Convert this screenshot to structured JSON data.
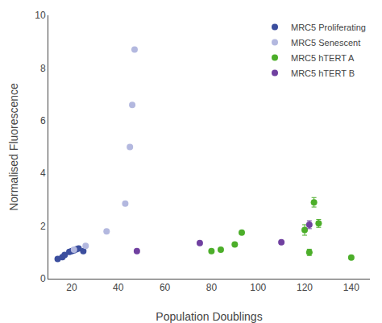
{
  "chart_data": {
    "type": "scatter",
    "xlabel": "Population Doublings",
    "ylabel": "Normalised Fluorescence",
    "xlim": [
      10,
      148
    ],
    "ylim": [
      0,
      10
    ],
    "xticks": [
      20,
      40,
      60,
      80,
      100,
      120,
      140
    ],
    "yticks": [
      0,
      2,
      4,
      6,
      8,
      10
    ],
    "grid": false,
    "legend": "upper right",
    "marker": "circle",
    "series": [
      {
        "name": "MRC5 Proliferating",
        "color": "#3b4e9e",
        "x": [
          14,
          16,
          17,
          19,
          20,
          21,
          22,
          23,
          25
        ],
        "values": [
          0.75,
          0.82,
          0.9,
          1.02,
          1.05,
          1.08,
          1.12,
          1.15,
          1.05
        ],
        "yerr": [
          null,
          null,
          null,
          null,
          null,
          null,
          null,
          null,
          null
        ]
      },
      {
        "name": "MRC5 Senescent",
        "color": "#b3b8df",
        "x": [
          21,
          26,
          35,
          43,
          45,
          46,
          47
        ],
        "values": [
          1.1,
          1.25,
          1.8,
          2.85,
          5.0,
          6.6,
          8.7
        ],
        "yerr": [
          null,
          null,
          null,
          null,
          null,
          null,
          null
        ]
      },
      {
        "name": "MRC5 hTERT A",
        "color": "#4cae2a",
        "x": [
          80,
          84,
          90,
          93,
          120,
          122,
          124,
          126,
          140
        ],
        "values": [
          1.05,
          1.1,
          1.3,
          1.75,
          1.85,
          1.0,
          2.9,
          2.1,
          0.8
        ],
        "yerr": [
          null,
          null,
          null,
          null,
          0.2,
          0.12,
          0.18,
          0.15,
          null
        ]
      },
      {
        "name": "MRC5 hTERT B",
        "color": "#7040a0",
        "x": [
          48,
          75,
          110,
          122
        ],
        "values": [
          1.05,
          1.35,
          1.38,
          2.05
        ],
        "yerr": [
          null,
          null,
          null,
          0.15
        ]
      }
    ]
  }
}
